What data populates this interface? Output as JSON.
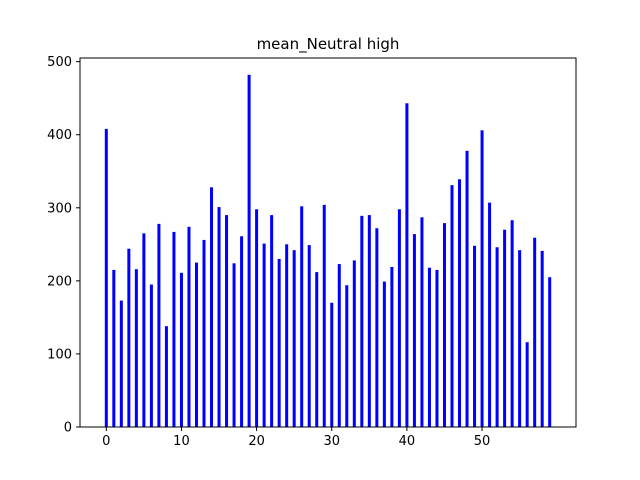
{
  "chart_data": {
    "type": "bar",
    "title": "mean_Neutral high",
    "xlabel": "",
    "ylabel": "",
    "x": [
      0,
      1,
      2,
      3,
      4,
      5,
      6,
      7,
      8,
      9,
      10,
      11,
      12,
      13,
      14,
      15,
      16,
      17,
      18,
      19,
      20,
      21,
      22,
      23,
      24,
      25,
      26,
      27,
      28,
      29,
      30,
      31,
      32,
      33,
      34,
      35,
      36,
      37,
      38,
      39,
      40,
      41,
      42,
      43,
      44,
      45,
      46,
      47,
      48,
      49,
      50,
      51,
      52,
      53,
      54,
      55,
      56,
      57,
      58,
      59
    ],
    "values": [
      408,
      215,
      173,
      244,
      216,
      265,
      195,
      278,
      138,
      267,
      211,
      274,
      225,
      256,
      328,
      301,
      290,
      224,
      261,
      482,
      298,
      251,
      290,
      230,
      250,
      242,
      302,
      249,
      212,
      304,
      170,
      223,
      194,
      228,
      289,
      290,
      272,
      199,
      219,
      298,
      443,
      264,
      287,
      218,
      215,
      279,
      331,
      339,
      378,
      248,
      406,
      307,
      246,
      270,
      283,
      242,
      116,
      259,
      241,
      205
    ],
    "xlim": [
      -3.5,
      62.5
    ],
    "ylim": [
      0,
      505
    ],
    "xticks": [
      0,
      10,
      20,
      30,
      40,
      50
    ],
    "yticks": [
      0,
      100,
      200,
      300,
      400,
      500
    ],
    "bar_color": "#0000ff",
    "grid": false,
    "legend": "none"
  }
}
